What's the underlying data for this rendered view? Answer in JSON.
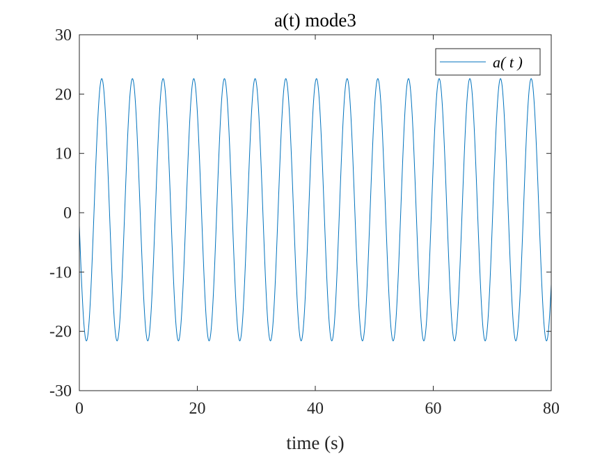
{
  "chart_data": {
    "type": "line",
    "title": "a(t) mode3",
    "xlabel": "time (s)",
    "ylabel": "",
    "xlim": [
      0,
      80
    ],
    "ylim": [
      -30,
      30
    ],
    "xticks": [
      0,
      20,
      40,
      60,
      80
    ],
    "xtick_labels": [
      "0",
      "20",
      "40",
      "60",
      "80"
    ],
    "yticks": [
      -30,
      -20,
      -10,
      0,
      10,
      20,
      30
    ],
    "ytick_labels": [
      "-30",
      "-20",
      "-10",
      "0",
      "10",
      "20",
      "30"
    ],
    "grid": false,
    "legend_position": "top-right",
    "series": [
      {
        "name": "a( t )",
        "color": "#0072BD",
        "function": "sinusoid",
        "amplitude": 22.1,
        "offset": 0.5,
        "period": 5.2,
        "peak_times": [
          3.8,
          9.0,
          14.2,
          19.4,
          24.6,
          29.8,
          35.0,
          40.2,
          45.4,
          50.6,
          55.8,
          61.0,
          66.2,
          71.4,
          76.6
        ],
        "peak_value": 22.6,
        "trough_times": [
          1.2,
          6.4,
          11.6,
          16.8,
          22.0,
          27.2,
          32.4,
          37.6,
          42.8,
          48.0,
          53.2,
          58.4,
          63.6,
          68.8,
          74.0,
          79.2
        ],
        "trough_value": -21.6,
        "start": [
          0,
          -4.5
        ],
        "end": [
          80,
          -9
        ]
      }
    ]
  }
}
